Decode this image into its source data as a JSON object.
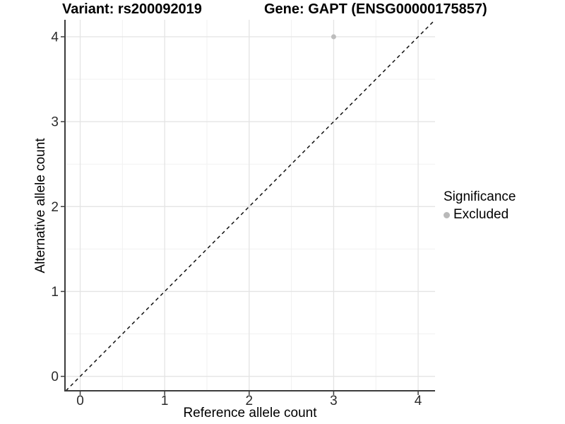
{
  "header": {
    "variant_title": "Variant: rs200092019",
    "gene_title": "Gene: GAPT (ENSG00000175857)"
  },
  "chart_data": {
    "type": "scatter",
    "title_left": "Variant: rs200092019",
    "title_right": "Gene: GAPT (ENSG00000175857)",
    "xlabel": "Reference allele count",
    "ylabel": "Alternative allele count",
    "xlim": [
      -0.18,
      4.2
    ],
    "ylim": [
      -0.17,
      4.2
    ],
    "x_ticks": [
      0,
      1,
      2,
      3,
      4
    ],
    "y_ticks": [
      0,
      1,
      2,
      3,
      4
    ],
    "x_minor": [
      0.5,
      1.5,
      2.5,
      3.5
    ],
    "y_minor": [
      0.5,
      1.5,
      2.5,
      3.5
    ],
    "grid": true,
    "points": [
      {
        "x": 3,
        "y": 4,
        "series": "Excluded"
      }
    ],
    "reference_line": {
      "type": "identity y=x",
      "style": "dashed"
    },
    "legend": {
      "title": "Significance",
      "position": "right",
      "items": [
        {
          "label": "Excluded",
          "marker": "circle",
          "color": "#b9b9b9"
        }
      ]
    },
    "colors": {
      "point": "#bdbdbd",
      "grid_major": "#e4e4e4",
      "grid_minor": "#f1f1f1",
      "axis_line": "#3c3c3c",
      "tick_mark": "#3c3c3c",
      "tick_label": "#2b2b2b",
      "reference_line": "#111111",
      "background": "#ffffff"
    }
  }
}
